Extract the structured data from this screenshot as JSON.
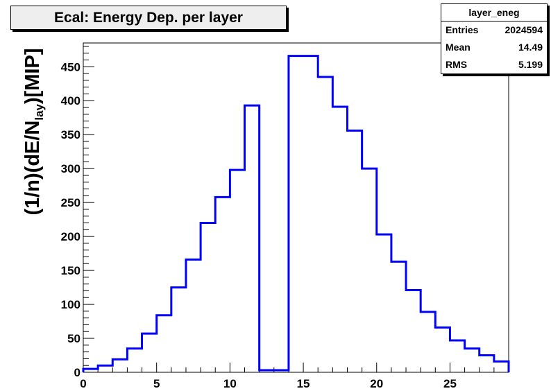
{
  "chart_data": {
    "type": "bar",
    "title": "Ecal: Energy Dep. per layer",
    "ylabel": {
      "prefix": "(1/n)(dE/N",
      "sub": "lay",
      "suffix": ")[MIP]"
    },
    "xlabel": "",
    "xlim": [
      0,
      29
    ],
    "ylim": [
      0,
      485
    ],
    "bin_edges": [
      0,
      1,
      2,
      3,
      4,
      5,
      6,
      7,
      8,
      9,
      10,
      11,
      12,
      13,
      14,
      15,
      16,
      17,
      18,
      19,
      20,
      21,
      22,
      23,
      24,
      25,
      26,
      27,
      28,
      29
    ],
    "values": [
      5,
      10,
      19,
      35,
      57,
      84,
      125,
      166,
      220,
      258,
      298,
      393,
      3,
      3,
      466,
      466,
      435,
      391,
      356,
      300,
      203,
      163,
      121,
      89,
      66,
      47,
      35,
      25,
      16
    ],
    "xticks": [
      0,
      5,
      10,
      15,
      20,
      25
    ],
    "yticks": [
      0,
      50,
      100,
      150,
      200,
      250,
      300,
      350,
      400,
      450
    ],
    "line_color": "#0000ff",
    "grid": false,
    "legend": "none"
  },
  "stats": {
    "title": "layer_eneg",
    "rows": [
      {
        "label": "Entries",
        "value": "2024594"
      },
      {
        "label": "Mean",
        "value": "14.49"
      },
      {
        "label": "RMS",
        "value": "5.199"
      }
    ]
  }
}
